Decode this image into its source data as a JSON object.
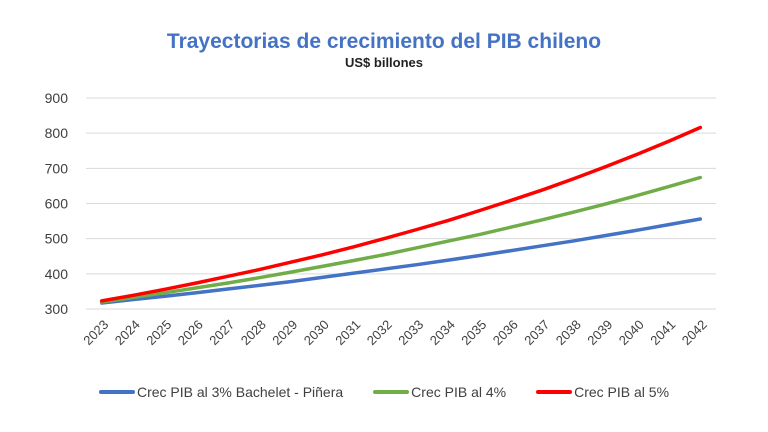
{
  "chart_data": {
    "type": "line",
    "title": "Trayectorias de crecimiento del PIB chileno",
    "subtitle": "US$ billones",
    "categories": [
      "2023",
      "2024",
      "2025",
      "2026",
      "2027",
      "2028",
      "2029",
      "2030",
      "2031",
      "2032",
      "2033",
      "2034",
      "2035",
      "2036",
      "2037",
      "2038",
      "2039",
      "2040",
      "2041",
      "2042"
    ],
    "yticks": [
      300,
      400,
      500,
      600,
      700,
      800,
      900
    ],
    "ylim": [
      300,
      900
    ],
    "grid": true,
    "legend_position": "bottom",
    "title_color": "#4472C4",
    "series": [
      {
        "name": "Crec PIB al 3% Bachelet - Piñera",
        "color": "#4472C4",
        "values": [
          317,
          327,
          336,
          346,
          357,
          367,
          378,
          390,
          402,
          414,
          426,
          439,
          452,
          466,
          480,
          494,
          509,
          524,
          540,
          556
        ]
      },
      {
        "name": "Crec PIB al 4%",
        "color": "#70AD47",
        "values": [
          320,
          333,
          346,
          360,
          374,
          389,
          405,
          421,
          438,
          455,
          474,
          493,
          512,
          533,
          554,
          576,
          599,
          623,
          648,
          674
        ]
      },
      {
        "name": "Crec PIB al 5%",
        "color": "#FF0000",
        "values": [
          323,
          339,
          356,
          374,
          393,
          412,
          433,
          454,
          477,
          501,
          526,
          552,
          580,
          609,
          639,
          671,
          705,
          740,
          777,
          816
        ]
      }
    ]
  }
}
